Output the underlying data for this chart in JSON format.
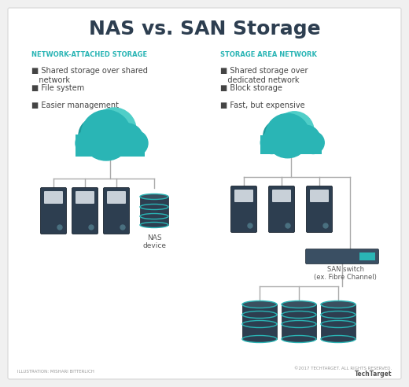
{
  "title": "NAS vs. SAN Storage",
  "title_fontsize": 18,
  "title_fontweight": "bold",
  "background_color": "#f0f0f0",
  "inner_bg": "#ffffff",
  "border_color": "#cccccc",
  "nas_header": "NETWORK-ATTACHED STORAGE",
  "san_header": "STORAGE AREA NETWORK",
  "header_color": "#2ab5b5",
  "header_fontsize": 6.0,
  "nas_bullets": [
    "■ Shared storage over shared\n   network",
    "■ File system",
    "■ Easier management"
  ],
  "san_bullets": [
    "■ Shared storage over\n   dedicated network",
    "■ Block storage",
    "■ Fast, but expensive"
  ],
  "bullet_color": "#444444",
  "bullet_fontsize": 7.0,
  "server_color_dark": "#2d3e50",
  "server_panel": "#3d5060",
  "server_panel2": "#c8d0d8",
  "cloud_color1": "#2ab5b5",
  "cloud_color2": "#50cec8",
  "cloud_shadow": "#1e9999",
  "line_color": "#aaaaaa",
  "nas_device_label": "NAS\ndevice",
  "san_switch_label": "SAN switch\n(ex. Fibre Channel)",
  "db_color": "#2d3e50",
  "db_ring_color": "#2ab5b5",
  "switch_color": "#3a4f63",
  "switch_accent": "#2ab5b5",
  "footer_left": "ILLUSTRATION: MISHARI BITTERLICH",
  "footer_right": "©2017 TECHTARGET. ALL RIGHTS RESERVED.",
  "footer_brand": "TechTarget"
}
